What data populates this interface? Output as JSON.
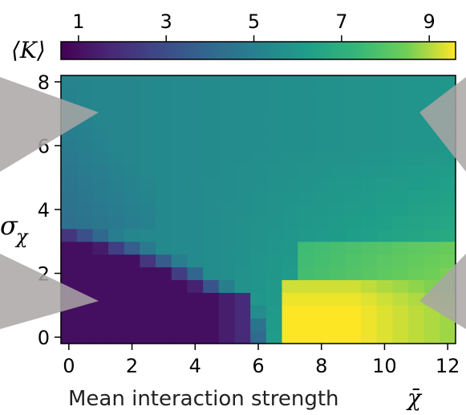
{
  "chart_data": {
    "type": "heatmap",
    "xlabel": "Mean interaction strength",
    "xlabel_symbol": "χ̄",
    "ylabel": "σ",
    "ylabel_subscript": "χ",
    "colorbar_label": "⟨K⟩",
    "colorbar_range": [
      0.6,
      9.6
    ],
    "colorbar_ticks": [
      "1",
      "3",
      "5",
      "7",
      "9"
    ],
    "colormap": "viridis",
    "xlim": [
      -0.25,
      12.25
    ],
    "ylim": [
      -0.2,
      8.2
    ],
    "x_ticks": [
      "0",
      "2",
      "4",
      "6",
      "8",
      "10",
      "12"
    ],
    "y_ticks": [
      "0",
      "2",
      "4",
      "6",
      "8"
    ],
    "grid": false,
    "x": [
      0,
      0.5,
      1,
      1.5,
      2,
      2.5,
      3,
      3.5,
      4,
      4.5,
      5,
      5.5,
      6,
      6.5,
      7,
      7.5,
      8,
      8.5,
      9,
      9.5,
      10,
      10.5,
      11,
      11.5,
      12
    ],
    "y": [
      0,
      0.4,
      0.8,
      1.2,
      1.6,
      2,
      2.4,
      2.8,
      3.2,
      3.6,
      4,
      4.4,
      4.8,
      5.2,
      5.6,
      6,
      6.4,
      6.8,
      7.2,
      7.6,
      8
    ],
    "description_of_values": "Mean K over grid; ~1 in lower-left region (small mean, small sigma), ~9.5 in lower-right (mean > 6.5, sigma < 1.5), ~5-6.5 elsewhere."
  },
  "overlays": [
    {
      "name": "left-upper-arrow",
      "color": "#a9a6a4"
    },
    {
      "name": "left-lower-arrow",
      "color": "#a9a6a4"
    },
    {
      "name": "right-upper-arrow",
      "color": "#a9a6a4"
    },
    {
      "name": "right-lower-arrow",
      "color": "#a9a6a4"
    }
  ]
}
